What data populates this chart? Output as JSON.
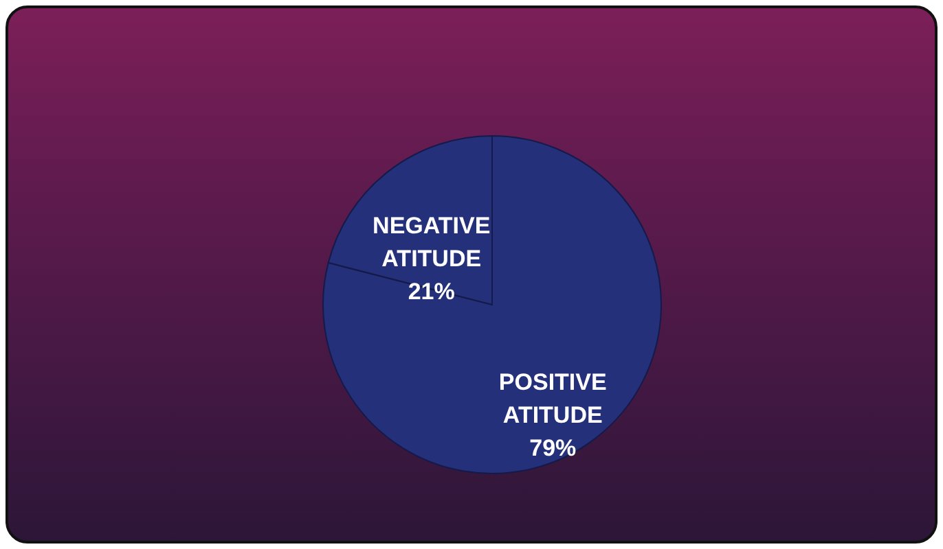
{
  "chart_data": {
    "type": "pie",
    "categories": [
      "POSITIVE ATITUDE",
      "NEGATIVE ATITUDE"
    ],
    "values": [
      79,
      21
    ],
    "colors": [
      "#25307a",
      "#25307a"
    ],
    "value_labels": [
      "79%",
      "21%"
    ]
  }
}
